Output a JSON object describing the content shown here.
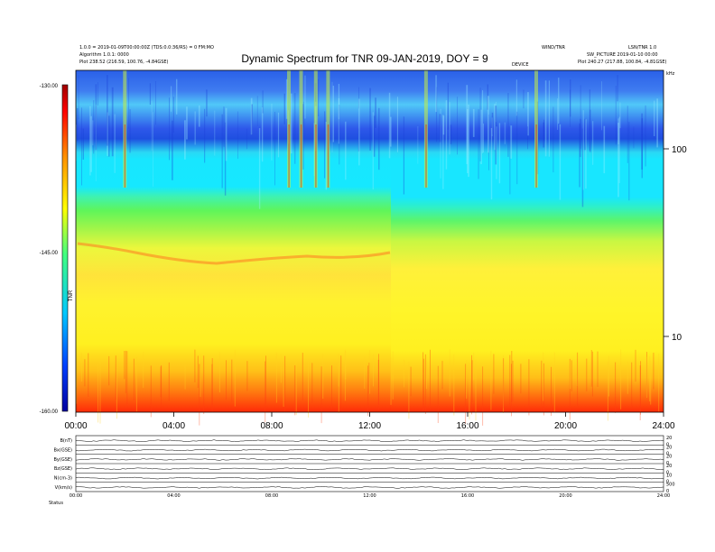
{
  "header": {
    "left_line1": "1.0.0 = 2019-01-09T00:00:00Z (TDS:0.0:36/RS) = 0 FM:MO",
    "left_line2": "Algorithm 1.0.1: 0000",
    "left_line3": "Plot 238.52 (216.59, 100.76, -4.84GSE)",
    "right_top_left": "WIND/TNR",
    "right_top_right": "LSN/TNR 1.0",
    "right_line2": "SW_PICTURE 2019-01-10 00:00",
    "right_line3": "Plot 240.27 (217.88, 100.84, -4.81GSE)",
    "sublabel": "DEVICE"
  },
  "chart_data": {
    "type": "heatmap",
    "title": "Dynamic Spectrum for TNR 09-JAN-2019, DOY = 9",
    "x_tick_labels": [
      "00:00",
      "04:00",
      "08:00",
      "12:00",
      "16:00",
      "20:00",
      "24:00"
    ],
    "x_range_hours": [
      0,
      24
    ],
    "y_scale": "log",
    "y_right_tick_labels": [
      "100",
      "10"
    ],
    "y_right_top_label": "kHz",
    "colorbar": {
      "label": "TNR",
      "tick_labels": [
        "-130.00",
        "-145.00",
        "-160.00"
      ],
      "range_db": [
        -160,
        -130
      ],
      "colors": [
        "#0000a0",
        "#0040ff",
        "#00c8ff",
        "#40ff80",
        "#ffff00",
        "#ff9000",
        "#ff0000",
        "#a00000"
      ]
    },
    "spectrum_bands": [
      {
        "from_khz": 180,
        "to_khz": 260,
        "level": "blue"
      },
      {
        "from_khz": 105,
        "to_khz": 180,
        "level": "cyan"
      },
      {
        "from_khz": 50,
        "to_khz": 105,
        "level": "green"
      },
      {
        "from_khz": 20,
        "to_khz": 50,
        "level": "yellow"
      },
      {
        "from_khz": 5,
        "to_khz": 20,
        "level": "yellow-orange"
      },
      {
        "from_khz": 4,
        "to_khz": 5,
        "level": "red"
      }
    ],
    "bursts_hours": [
      2.0,
      8.7,
      9.2,
      9.8,
      10.3,
      14.3,
      18.8
    ],
    "lower_panels": [
      {
        "label": "B(nT)",
        "right_ticks": [
          "20",
          "0"
        ]
      },
      {
        "label": "Bx(GSE)",
        "right_ticks": [
          "20",
          "0"
        ]
      },
      {
        "label": "By(GSE)",
        "right_ticks": [
          "20",
          "0"
        ]
      },
      {
        "label": "Bz(GSE)",
        "right_ticks": [
          "20",
          "0"
        ]
      },
      {
        "label": "N(cm-3)",
        "right_ticks": [
          "10",
          "0"
        ]
      },
      {
        "label": "V(km/s)",
        "right_ticks": [
          "500",
          "0"
        ]
      }
    ],
    "lower_x_tick_labels": [
      "00:00",
      "04:00",
      "08:00",
      "12:00",
      "16:00",
      "20:00",
      "24:00"
    ],
    "footer_label": "Status"
  }
}
